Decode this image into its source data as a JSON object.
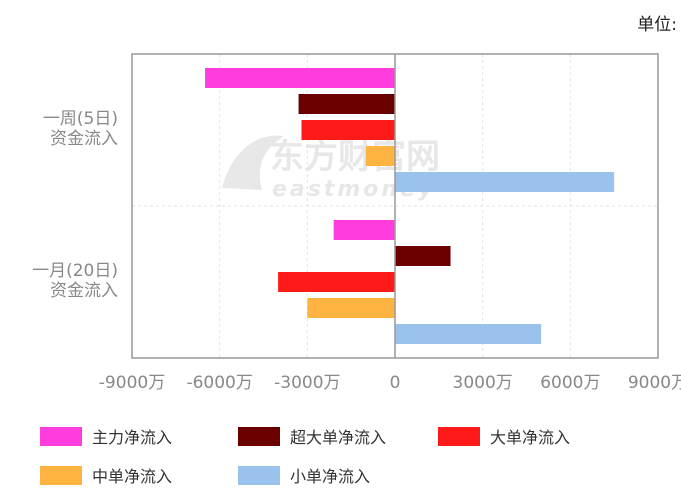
{
  "unit_label": "单位:",
  "watermark": {
    "cn": "东方财富网",
    "en": "eastmoney"
  },
  "chart_data": {
    "type": "bar",
    "orientation": "horizontal",
    "categories": [
      [
        "一周(5日)",
        "资金流入"
      ],
      [
        "一月(20日)",
        "资金流入"
      ]
    ],
    "series": [
      {
        "name": "主力净流入",
        "color": "#ff3ddf",
        "values": [
          -6500,
          -2100
        ]
      },
      {
        "name": "超大单净流入",
        "color": "#6b0000",
        "values": [
          -3300,
          1900
        ]
      },
      {
        "name": "大单净流入",
        "color": "#ff1a1a",
        "values": [
          -3200,
          -4000
        ]
      },
      {
        "name": "中单净流入",
        "color": "#ffb340",
        "values": [
          -1000,
          -3000
        ]
      },
      {
        "name": "小单净流入",
        "color": "#99c2ec",
        "values": [
          7500,
          5000
        ]
      }
    ],
    "xlim": [
      -9000,
      9000
    ],
    "xticks": [
      "-9000万",
      "-6000万",
      "-3000万",
      "0",
      "3000万",
      "6000万",
      "9000万"
    ],
    "grid": true,
    "legend_position": "bottom"
  }
}
